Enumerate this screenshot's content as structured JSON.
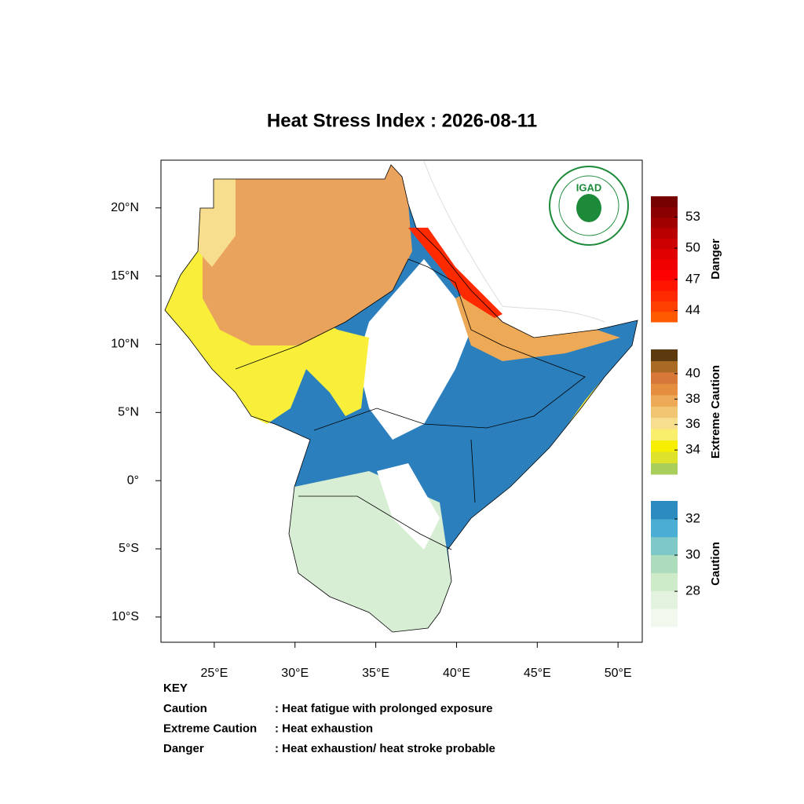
{
  "title": "Heat Stress Index : 2026-08-11",
  "map": {
    "xlim": [
      21.7,
      51.5
    ],
    "ylim": [
      -11.85,
      23.5
    ],
    "lon_ticks": [
      {
        "value": 25,
        "label": "25°E"
      },
      {
        "value": 30,
        "label": "30°E"
      },
      {
        "value": 35,
        "label": "35°E"
      },
      {
        "value": 40,
        "label": "40°E"
      },
      {
        "value": 45,
        "label": "45°E"
      },
      {
        "value": 50,
        "label": "50°E"
      }
    ],
    "lat_ticks": [
      {
        "value": 20,
        "label": "20°N"
      },
      {
        "value": 15,
        "label": "15°N"
      },
      {
        "value": 10,
        "label": "10°N"
      },
      {
        "value": 5,
        "label": "5°N"
      },
      {
        "value": 0,
        "label": "0°"
      },
      {
        "value": -5,
        "label": "5°S"
      },
      {
        "value": -10,
        "label": "10°S"
      }
    ]
  },
  "logo": "IGAD",
  "legend": [
    {
      "name": "Danger",
      "lim": [
        42.9,
        55.0
      ],
      "ticks": [
        44,
        47,
        50,
        53
      ],
      "colors": [
        "#ff5a00",
        "#ff4000",
        "#ff2a00",
        "#ff1500",
        "#ff0000",
        "#f00000",
        "#e00000",
        "#cc0000",
        "#b80000",
        "#a00000",
        "#8a0000",
        "#760000"
      ]
    },
    {
      "name": "Extreme Caution",
      "lim": [
        32.1,
        41.9
      ],
      "ticks": [
        34,
        36,
        38,
        40
      ],
      "colors": [
        "#a9ce5a",
        "#dfe22a",
        "#f8ee00",
        "#f9ef6c",
        "#f6de8e",
        "#f2c572",
        "#eda955",
        "#e58e40",
        "#d77839",
        "#a96a26",
        "#5c3a0e"
      ]
    },
    {
      "name": "Caution",
      "lim": [
        26.05,
        33.0
      ],
      "ticks": [
        28,
        30,
        32
      ],
      "colors": [
        "#f1f8ee",
        "#e2f2de",
        "#cdeac9",
        "#addcbc",
        "#7ec8c8",
        "#49add4",
        "#2c8bbf"
      ]
    }
  ],
  "key": {
    "title": "KEY",
    "rows": [
      [
        "Caution",
        ": Heat fatigue with prolonged exposure"
      ],
      [
        "Extreme Caution",
        " : Heat exhaustion"
      ],
      [
        "Danger",
        ": Heat exhaustion/ heat stroke probable"
      ]
    ]
  }
}
